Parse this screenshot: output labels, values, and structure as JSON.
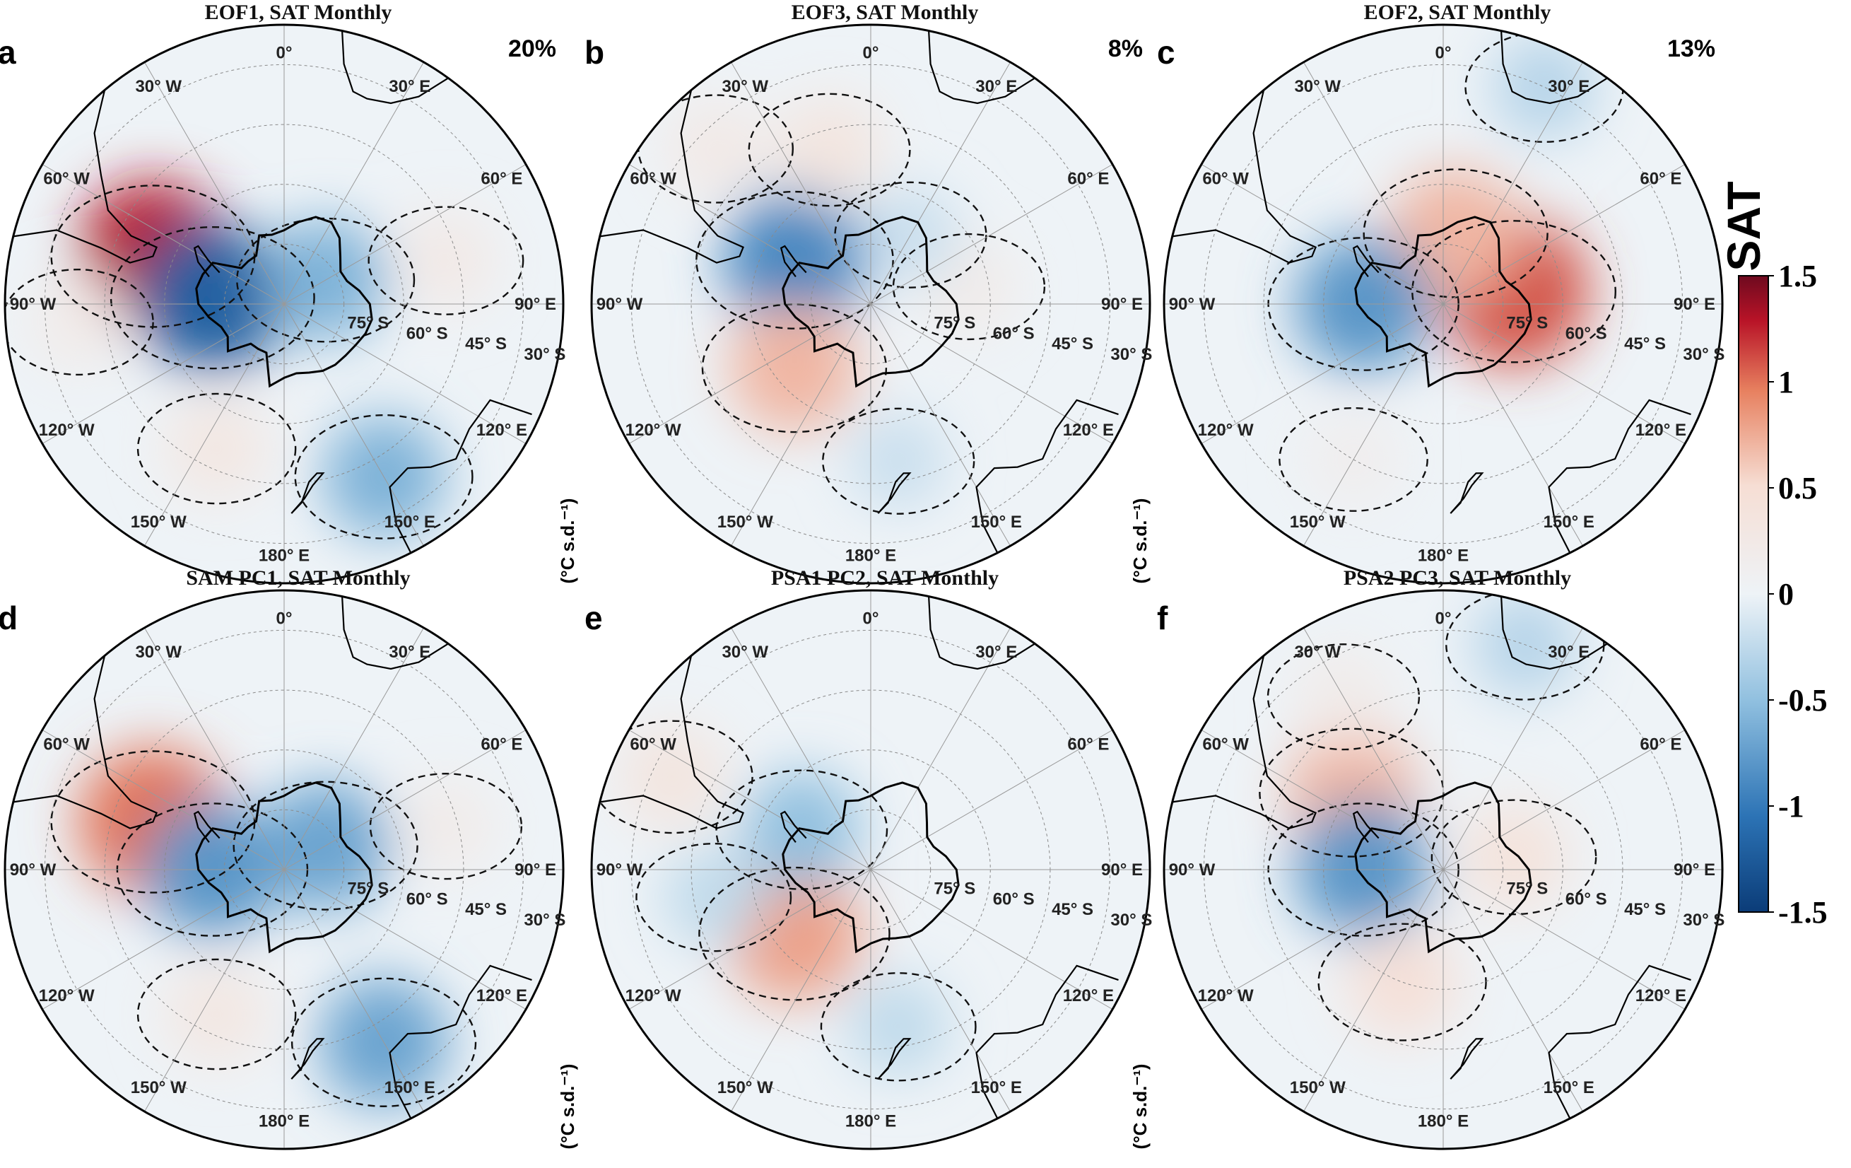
{
  "figure": {
    "panels": [
      {
        "letter": "a",
        "title": "EOF1, SAT Monthly",
        "percent": "20%",
        "unit": "(°C s.d.⁻¹)",
        "anomalies": [
          {
            "lon": -70,
            "lat": -55,
            "value": 1.3
          },
          {
            "lon": -85,
            "lat": -72,
            "value": -1.2
          },
          {
            "lon": 60,
            "lat": -78,
            "value": -0.6
          },
          {
            "lon": 75,
            "lat": -48,
            "value": 0.25
          },
          {
            "lon": 150,
            "lat": -40,
            "value": -0.6
          },
          {
            "lon": -155,
            "lat": -50,
            "value": 0.3
          },
          {
            "lon": -95,
            "lat": -38,
            "value": 0.2
          }
        ]
      },
      {
        "letter": "b",
        "title": "EOF3, SAT Monthly",
        "percent": "8%",
        "unit": "(°C s.d.⁻¹)",
        "anomalies": [
          {
            "lon": -60,
            "lat": -68,
            "value": -0.9
          },
          {
            "lon": -130,
            "lat": -65,
            "value": 0.7
          },
          {
            "lon": -15,
            "lat": -50,
            "value": 0.35
          },
          {
            "lon": -45,
            "lat": -35,
            "value": 0.25
          },
          {
            "lon": 80,
            "lat": -65,
            "value": 0.2
          },
          {
            "lon": 170,
            "lat": -50,
            "value": -0.2
          },
          {
            "lon": 30,
            "lat": -70,
            "value": -0.2
          }
        ]
      },
      {
        "letter": "c",
        "title": "EOF2, SAT Monthly",
        "percent": "13%",
        "unit": "(°C s.d.⁻¹)",
        "anomalies": [
          {
            "lon": 80,
            "lat": -72,
            "value": 1.1
          },
          {
            "lon": 10,
            "lat": -72,
            "value": 0.7
          },
          {
            "lon": -90,
            "lat": -70,
            "value": -0.8
          },
          {
            "lon": 25,
            "lat": -30,
            "value": -0.3
          },
          {
            "lon": -150,
            "lat": -45,
            "value": 0.15
          }
        ]
      },
      {
        "letter": "d",
        "title": "SAM PC1, SAT Monthly",
        "percent": "",
        "unit": "(°C s.d.⁻¹)",
        "anomalies": [
          {
            "lon": -70,
            "lat": -55,
            "value": 1.0
          },
          {
            "lon": -90,
            "lat": -72,
            "value": -0.8
          },
          {
            "lon": 60,
            "lat": -78,
            "value": -0.7
          },
          {
            "lon": 150,
            "lat": -40,
            "value": -0.7
          },
          {
            "lon": -155,
            "lat": -50,
            "value": 0.3
          },
          {
            "lon": 75,
            "lat": -48,
            "value": 0.2
          }
        ]
      },
      {
        "letter": "e",
        "title": "PSA1 PC2, SAT Monthly",
        "percent": "",
        "unit": "(°C s.d.⁻¹)",
        "anomalies": [
          {
            "lon": -130,
            "lat": -65,
            "value": 0.8
          },
          {
            "lon": -60,
            "lat": -70,
            "value": -0.5
          },
          {
            "lon": -65,
            "lat": -35,
            "value": 0.35
          },
          {
            "lon": -100,
            "lat": -50,
            "value": -0.25
          },
          {
            "lon": 170,
            "lat": -50,
            "value": -0.25
          }
        ]
      },
      {
        "letter": "f",
        "title": "PSA2 PC3, SAT Monthly",
        "percent": "",
        "unit": "(°C s.d.⁻¹)",
        "anomalies": [
          {
            "lon": -50,
            "lat": -60,
            "value": 0.7
          },
          {
            "lon": -90,
            "lat": -70,
            "value": -0.8
          },
          {
            "lon": 80,
            "lat": -72,
            "value": 0.4
          },
          {
            "lon": -160,
            "lat": -60,
            "value": 0.45
          },
          {
            "lon": 20,
            "lat": -30,
            "value": -0.3
          },
          {
            "lon": -30,
            "lat": -40,
            "value": 0.2
          }
        ]
      }
    ],
    "lon_labels": [
      {
        "lon": 0,
        "text": "0°"
      },
      {
        "lon": 30,
        "text": "30° E"
      },
      {
        "lon": 60,
        "text": "60° E"
      },
      {
        "lon": 90,
        "text": "90° E"
      },
      {
        "lon": 120,
        "text": "120° E"
      },
      {
        "lon": 150,
        "text": "150° E"
      },
      {
        "lon": 180,
        "text": "180° E"
      },
      {
        "lon": -150,
        "text": "150° W"
      },
      {
        "lon": -120,
        "text": "120° W"
      },
      {
        "lon": -90,
        "text": "90° W"
      },
      {
        "lon": -60,
        "text": "60° W"
      },
      {
        "lon": -30,
        "text": "30° W"
      }
    ],
    "lat_labels": [
      {
        "lat": -75,
        "text": "75° S"
      },
      {
        "lat": -60,
        "text": "60° S"
      },
      {
        "lat": -45,
        "text": "45° S"
      },
      {
        "lat": -30,
        "text": "30° S"
      }
    ],
    "colorbar": {
      "title": "SAT",
      "min": -1.5,
      "max": 1.5,
      "ticks": [
        {
          "value": 1.5,
          "label": "1.5"
        },
        {
          "value": 1,
          "label": "1"
        },
        {
          "value": 0.5,
          "label": "0.5"
        },
        {
          "value": 0,
          "label": "0"
        },
        {
          "value": -0.5,
          "label": "-0.5"
        },
        {
          "value": -1,
          "label": "-1"
        },
        {
          "value": -1.5,
          "label": "-1.5"
        }
      ],
      "colors": [
        "#0b3c78",
        "#2c73b5",
        "#8fbfdf",
        "#eef3f7",
        "#f6ded4",
        "#e7805f",
        "#b81327",
        "#6e0a1f"
      ]
    }
  }
}
